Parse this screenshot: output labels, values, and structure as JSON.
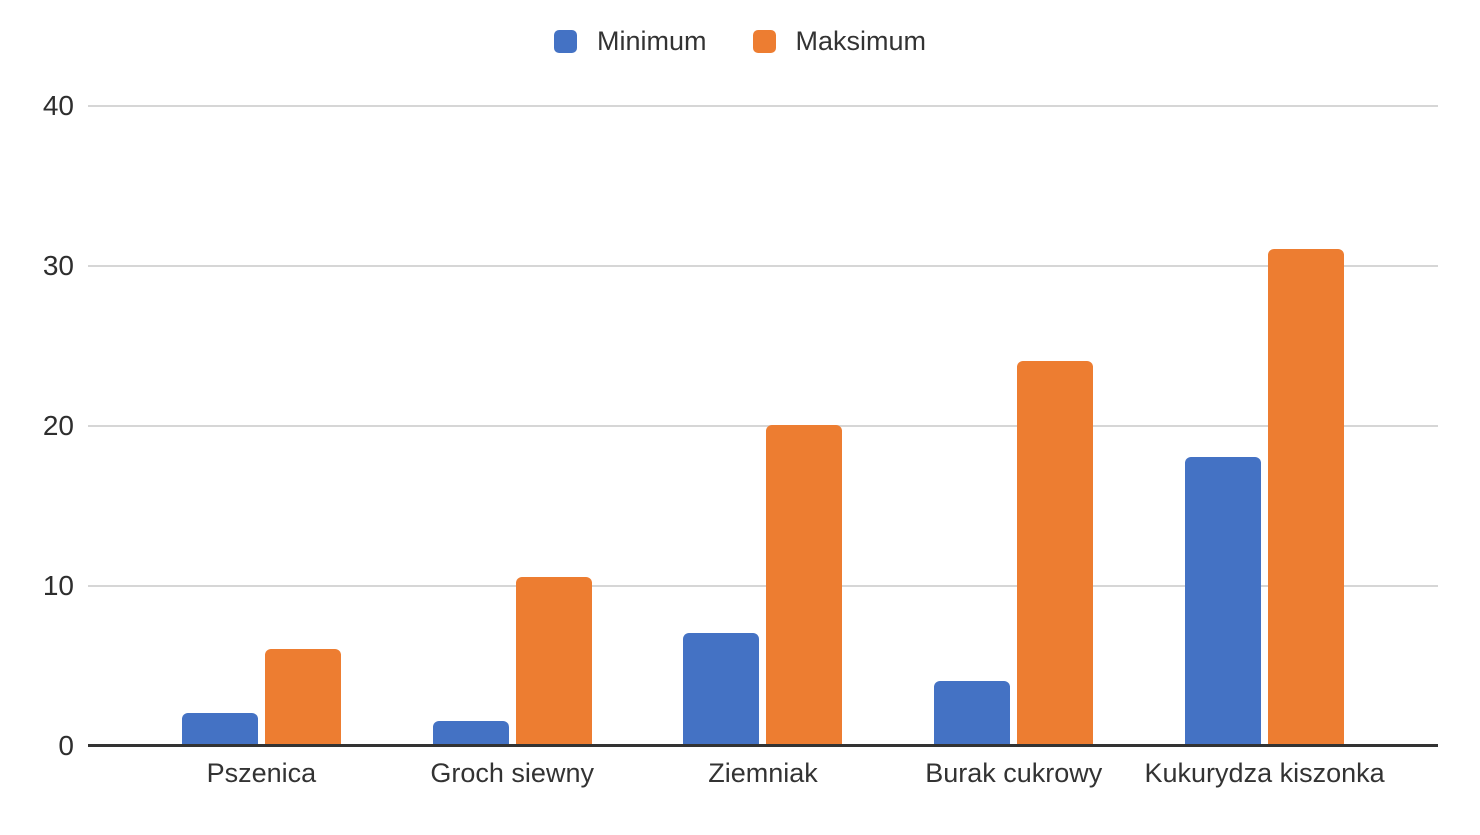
{
  "chart_data": {
    "type": "bar",
    "categories": [
      "Pszenica",
      "Groch siewny",
      "Ziemniak",
      "Burak cukrowy",
      "Kukurydza kiszonka"
    ],
    "series": [
      {
        "name": "Minimum",
        "color": "#4472C4",
        "values": [
          2,
          1.5,
          7,
          4,
          18
        ]
      },
      {
        "name": "Maksimum",
        "color": "#ED7D31",
        "values": [
          6,
          10.5,
          20,
          24,
          31
        ]
      }
    ],
    "title": "",
    "xlabel": "",
    "ylabel": "",
    "ylim": [
      0,
      40
    ],
    "yticks": [
      0,
      10,
      20,
      30,
      40
    ],
    "grid": true,
    "legend_position": "top-center"
  },
  "colors": {
    "background": "#ffffff",
    "gridline": "#d6d6d6",
    "axis_line": "#333333",
    "text": "#333333"
  }
}
